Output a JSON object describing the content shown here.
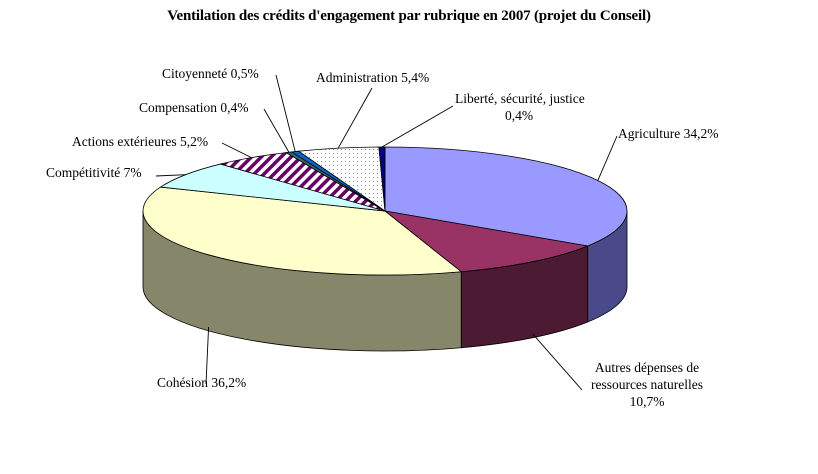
{
  "chart_data": {
    "type": "pie",
    "title": "Ventilation des crédits  d'engagement par rubrique en 2007 (projet du Conseil)",
    "slices": [
      {
        "name": "Agriculture",
        "label": "Agriculture 34,2%",
        "value": 34.2,
        "color": "#9999ff",
        "side": "#4a4a8a"
      },
      {
        "name": "Autres dépenses de ressources naturelles",
        "label_lines": [
          "Autres dépenses de",
          "ressources naturelles",
          "10,7%"
        ],
        "value": 10.7,
        "color": "#993366",
        "side": "#4d1a33"
      },
      {
        "name": "Cohésion",
        "label": "Cohésion 36,2%",
        "value": 36.2,
        "color": "#ffffcc",
        "side": "#86866a"
      },
      {
        "name": "Compétitivité",
        "label": "Compétitivité 7%",
        "value": 7.0,
        "color": "#ccffff",
        "side": "#6a8686"
      },
      {
        "name": "Actions extérieures",
        "label": "Actions extérieures 5,2%",
        "value": 5.2,
        "color": "#660066",
        "pattern": "stripes",
        "side": "#330033"
      },
      {
        "name": "Compensation",
        "label": "Compensation 0,4%",
        "value": 0.4,
        "color": "#336666",
        "side": "#1a3333"
      },
      {
        "name": "Citoyenneté",
        "label": "Citoyenneté 0,5%",
        "value": 0.5,
        "color": "#0066cc",
        "side": "#003366"
      },
      {
        "name": "Administration",
        "label": "Administration 5,4%",
        "value": 5.4,
        "color": "#ffffff",
        "pattern": "dots",
        "side": "#888888"
      },
      {
        "name": "Liberté, sécurité, justice",
        "label_lines": [
          "Liberté, sécurité, justice",
          "0,4%"
        ],
        "value": 0.4,
        "color": "#000080",
        "side": "#000040"
      }
    ],
    "legend": "none"
  }
}
